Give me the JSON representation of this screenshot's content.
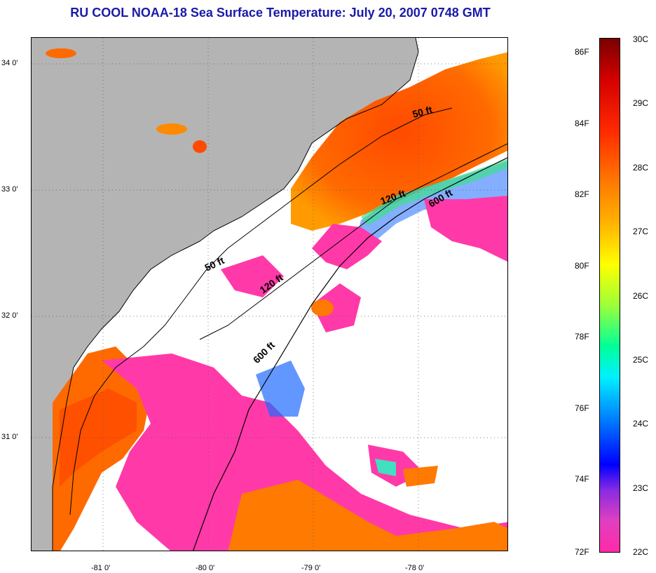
{
  "title": "RU COOL  NOAA-18  Sea Surface Temperature:  July 20, 2007 0748 GMT",
  "map": {
    "lat_labels": [
      "34 0'",
      "33 0'",
      "32 0'",
      "31 0'"
    ],
    "lon_labels": [
      "-81 0'",
      "-80 0'",
      "-79 0'",
      "-78 0'"
    ],
    "contour_labels": [
      "50 ft",
      "120 ft",
      "600 ft",
      "50 ft",
      "120 ft",
      "600 ft"
    ],
    "colors": {
      "land": "#b4b4b4",
      "cloud": "#ffffff",
      "warm_sst": "#ff5a00",
      "cool_sst": "#ff3aa8"
    }
  },
  "colorbar": {
    "celsius": [
      "30C",
      "29C",
      "28C",
      "27C",
      "26C",
      "25C",
      "24C",
      "23C",
      "22C"
    ],
    "fahrenheit": [
      "86F",
      "84F",
      "82F",
      "80F",
      "78F",
      "76F",
      "74F",
      "72F"
    ]
  }
}
